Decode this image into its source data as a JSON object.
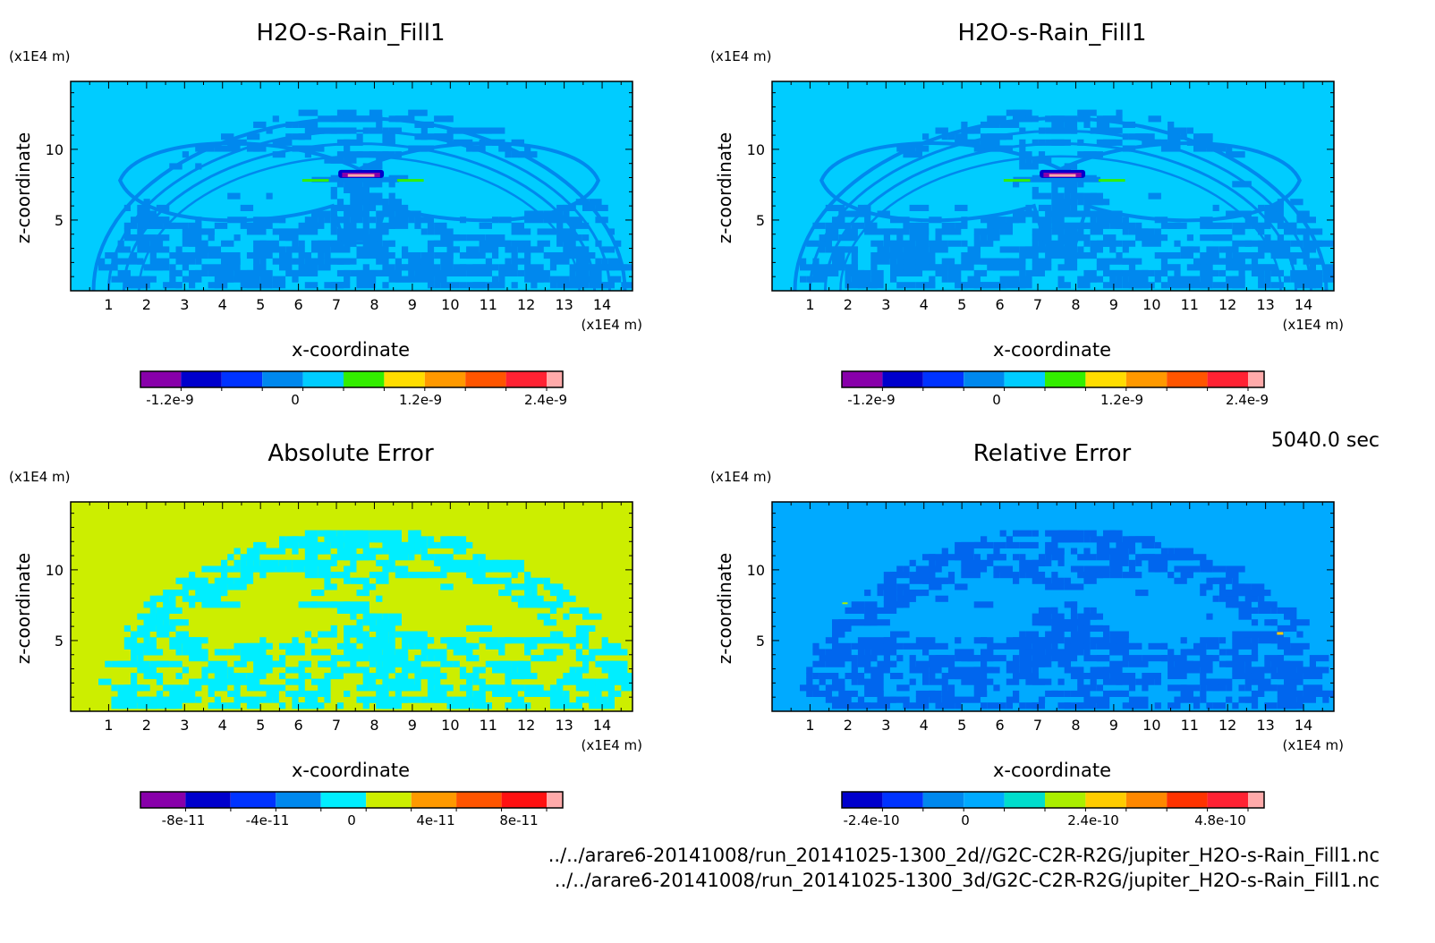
{
  "panels": [
    {
      "id": "tl",
      "title": "H2O-s-Rain_Fill1",
      "xlabel": "x-coordinate",
      "ylabel": "z-coordinate",
      "unit_label": "(x1E4 m)",
      "variant": "field",
      "background_color": "#00ccff",
      "colorbar": {
        "colors": [
          "#8800aa",
          "#0000cc",
          "#0033ff",
          "#0088ee",
          "#00ccff",
          "#33ee00",
          "#ffdd00",
          "#ff9900",
          "#ff5500",
          "#ff2233",
          "#ffaaaa"
        ],
        "labels": [
          "-1.2e-9",
          "0",
          "1.2e-9",
          "2.4e-9"
        ]
      }
    },
    {
      "id": "tr",
      "title": "H2O-s-Rain_Fill1",
      "xlabel": "x-coordinate",
      "ylabel": "z-coordinate",
      "unit_label": "(x1E4 m)",
      "variant": "field",
      "background_color": "#00ccff",
      "colorbar": {
        "colors": [
          "#8800aa",
          "#0000cc",
          "#0033ff",
          "#0088ee",
          "#00ccff",
          "#33ee00",
          "#ffdd00",
          "#ff9900",
          "#ff5500",
          "#ff2233",
          "#ffaaaa"
        ],
        "labels": [
          "-1.2e-9",
          "0",
          "1.2e-9",
          "2.4e-9"
        ]
      }
    },
    {
      "id": "bl",
      "title": "Absolute Error",
      "xlabel": "x-coordinate",
      "ylabel": "z-coordinate",
      "unit_label": "(x1E4 m)",
      "variant": "abs",
      "background_color": "#ccee00",
      "colorbar": {
        "colors": [
          "#8800aa",
          "#0000cc",
          "#0033ff",
          "#0088ee",
          "#00eeff",
          "#ccee00",
          "#ff9900",
          "#ff5500",
          "#ff1111",
          "#ffaaaa"
        ],
        "labels": [
          "-8e-11",
          "-4e-11",
          "0",
          "4e-11",
          "8e-11"
        ]
      }
    },
    {
      "id": "br",
      "title": "Relative Error",
      "xlabel": "x-coordinate",
      "ylabel": "z-coordinate",
      "unit_label": "(x1E4 m)",
      "variant": "rel",
      "background_color": "#00aaff",
      "colorbar": {
        "colors": [
          "#0000cc",
          "#0033ff",
          "#0088ee",
          "#00aaff",
          "#00ddcc",
          "#aaee00",
          "#ffcc00",
          "#ff8800",
          "#ff3300",
          "#ff2233",
          "#ffaaaa"
        ],
        "labels": [
          "-2.4e-10",
          "0",
          "2.4e-10",
          "4.8e-10"
        ]
      }
    }
  ],
  "chart_data": {
    "type": "heatmap",
    "x_axis": {
      "label": "x-coordinate",
      "unit": "(x1E4 m)",
      "range": [
        0,
        14.8
      ],
      "ticks": [
        1,
        2,
        3,
        4,
        5,
        6,
        7,
        8,
        9,
        10,
        11,
        12,
        13,
        14
      ]
    },
    "z_axis": {
      "label": "z-coordinate",
      "unit": "(x1E4 m)",
      "range": [
        0,
        14.8
      ],
      "ticks": [
        5,
        10
      ]
    },
    "time_label": "5040.0 sec",
    "files": [
      "../../arare6-20141008/run_20141025-1300_2d//G2C-C2R-R2G/jupiter_H2O-s-Rain_Fill1.nc",
      "../../arare6-20141008/run_20141025-1300_3d/G2C-C2R-R2G/jupiter_H2O-s-Rain_Fill1.nc"
    ]
  }
}
